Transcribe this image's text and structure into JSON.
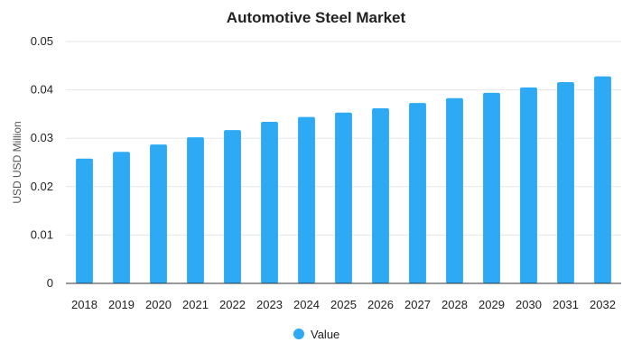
{
  "chart_data": {
    "type": "bar",
    "title": "Automotive Steel Market",
    "ylabel": "USD USD Million",
    "xlabel": "",
    "categories": [
      "2018",
      "2019",
      "2020",
      "2021",
      "2022",
      "2023",
      "2024",
      "2025",
      "2026",
      "2027",
      "2028",
      "2029",
      "2030",
      "2031",
      "2032"
    ],
    "series": [
      {
        "name": "Value",
        "color": "#2eaaf5",
        "values": [
          0.0258,
          0.0272,
          0.0287,
          0.0302,
          0.0317,
          0.0334,
          0.0344,
          0.0353,
          0.0362,
          0.0373,
          0.0383,
          0.0394,
          0.0405,
          0.0416,
          0.0428
        ]
      }
    ],
    "ylim": [
      0,
      0.05
    ],
    "yticks": [
      "0",
      "0.01",
      "0.02",
      "0.03",
      "0.04",
      "0.05"
    ],
    "grid": true,
    "legend_position": "bottom-center"
  }
}
